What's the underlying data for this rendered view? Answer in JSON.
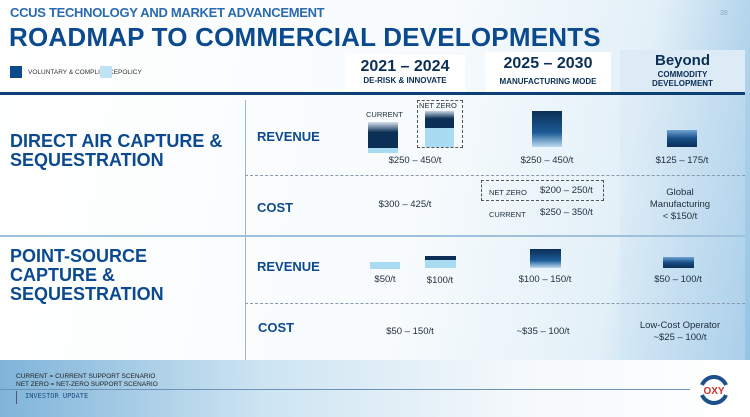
{
  "header": {
    "subtitle": "CCUS TECHNOLOGY AND MARKET ADVANCEMENT",
    "title": "ROADMAP TO COMMERCIAL DEVELOPMENTS",
    "page_number": "38"
  },
  "legend": [
    {
      "label": "VOLUNTARY & COMPLIANCE",
      "color": "#0c4a8f"
    },
    {
      "label": "POLICY",
      "color": "#bfe3f5"
    }
  ],
  "columns": [
    {
      "period": "2021 – 2024",
      "phase": "DE-RISK & INNOVATE"
    },
    {
      "period": "2025 – 2030",
      "phase": "MANUFACTURING MODE"
    },
    {
      "period": "Beyond",
      "phase": "COMMODITY DEVELOPMENT"
    }
  ],
  "sections": [
    {
      "name": "DIRECT AIR CAPTURE & SEQUESTRATION",
      "revenue": {
        "label": "REVENUE",
        "current_tag": "CURRENT",
        "netzero_tag": "NET ZERO",
        "col1": "$250 – 450/t",
        "col2": "$250 – 450/t",
        "col3": "$125 – 175/t"
      },
      "cost": {
        "label": "COST",
        "col1": "$300 – 425/t",
        "col2": [
          {
            "scenario": "NET ZERO",
            "value": "$200 – 250/t"
          },
          {
            "scenario": "CURRENT",
            "value": "$250 – 350/t"
          }
        ],
        "col3": [
          "Global",
          "Manufacturing",
          "< $150/t"
        ]
      }
    },
    {
      "name": "POINT-SOURCE CAPTURE & SEQUESTRATION",
      "revenue": {
        "label": "REVENUE",
        "col1a": "$50/t",
        "col1b": "$100/t",
        "col2": "$100 – 150/t",
        "col3": "$50 – 100/t"
      },
      "cost": {
        "label": "COST",
        "col1": "$50 – 150/t",
        "col2": "~$35 – 100/t",
        "col3": [
          "Low-Cost Operator",
          "~$25 – 100/t"
        ]
      }
    }
  ],
  "footnotes": [
    "CURRENT = CURRENT SUPPORT SCENARIO",
    "NET ZERO = NET-ZERO SUPPORT SCENARIO"
  ],
  "footer": {
    "label": "INVESTOR UPDATE",
    "logo": "OXY"
  }
}
